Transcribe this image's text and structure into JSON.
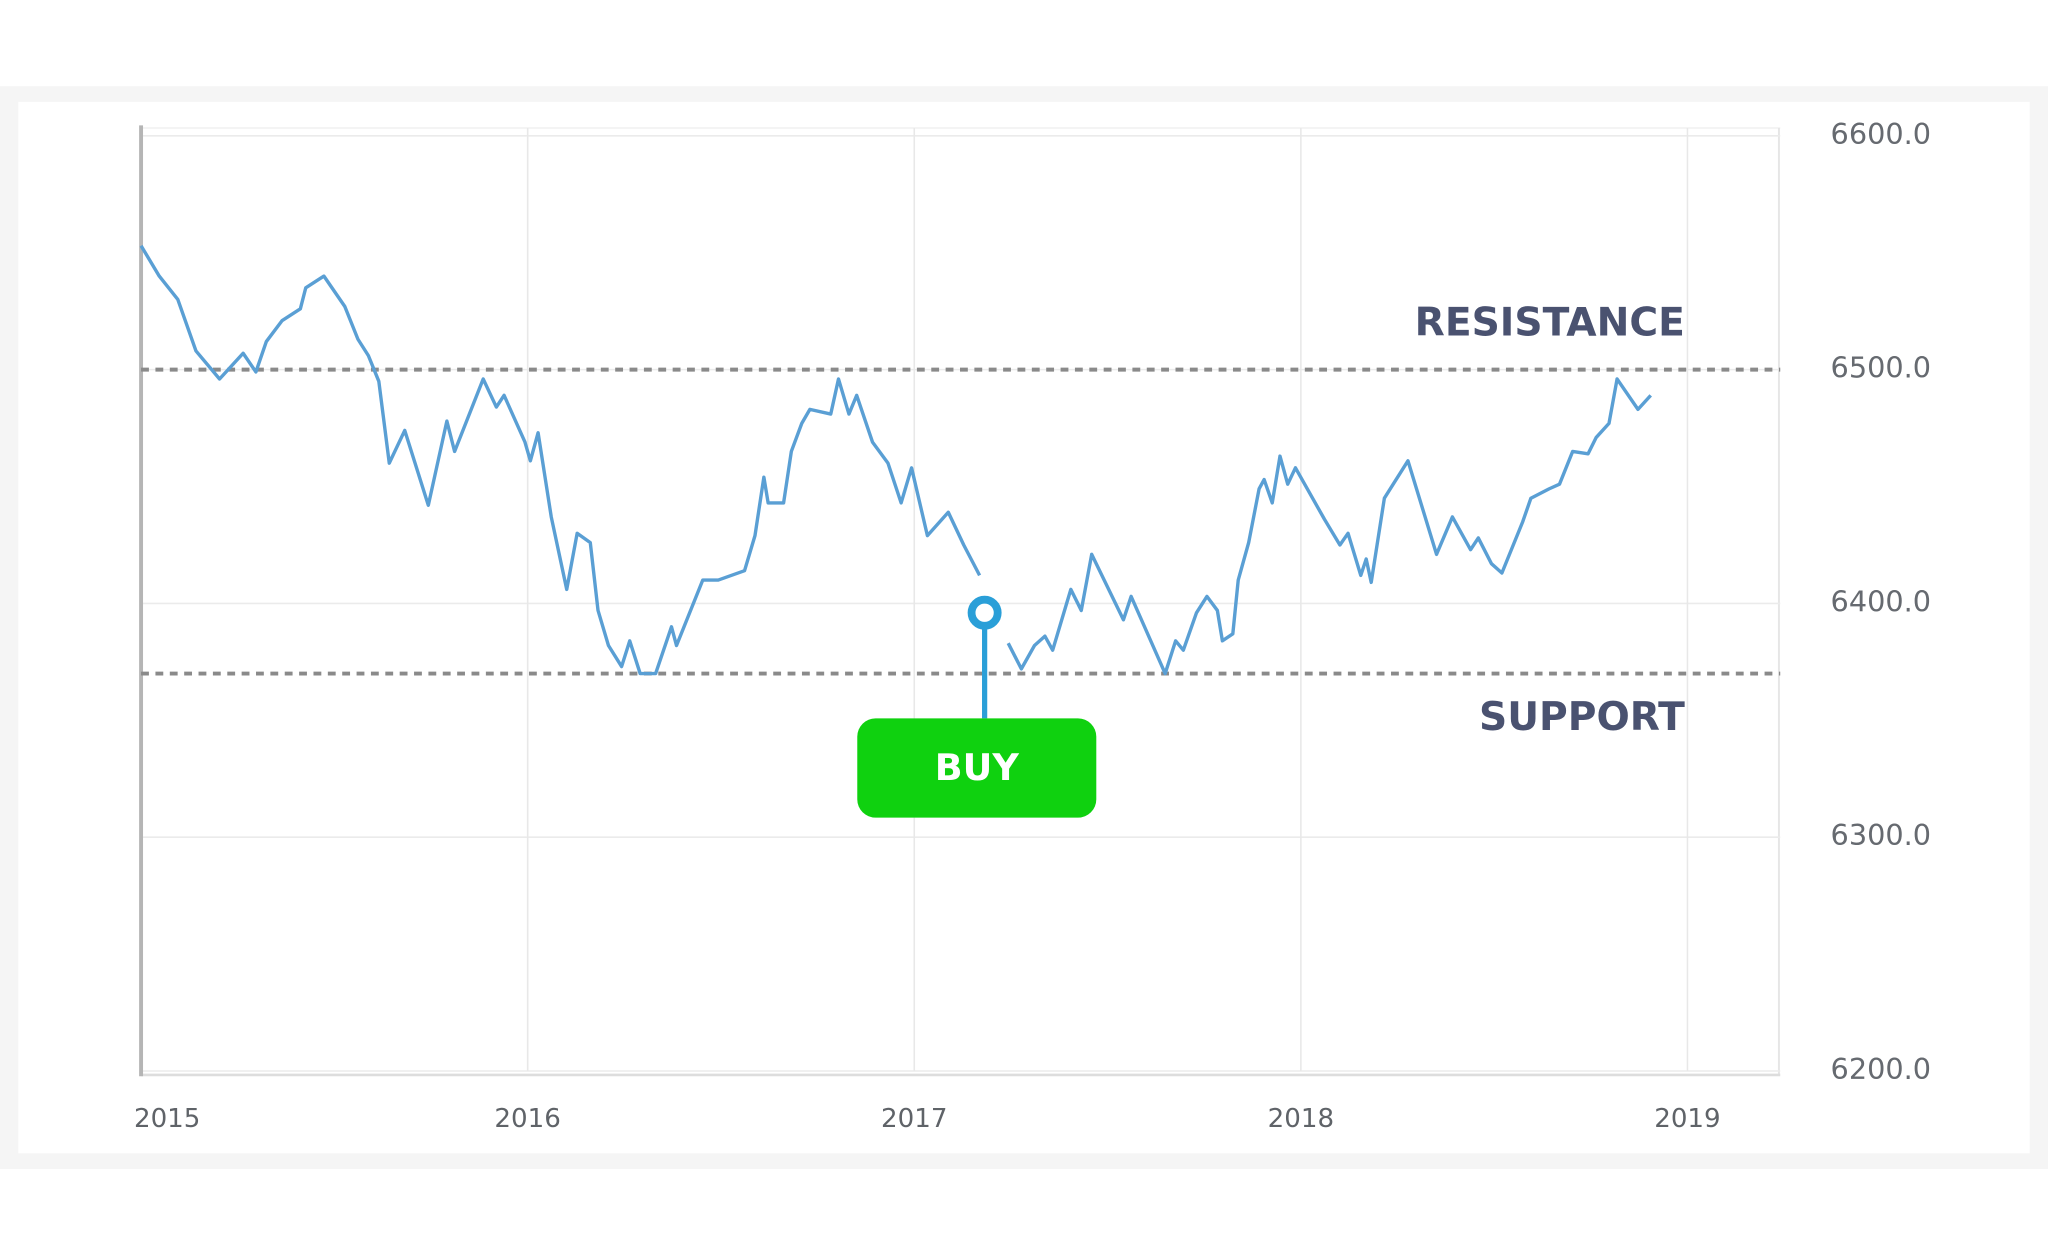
{
  "chart_data": {
    "type": "line",
    "color": "#5a9fd4",
    "x": [
      2015.0,
      2015.047,
      2015.095,
      2015.142,
      2015.203,
      2015.264,
      2015.297,
      2015.324,
      2015.365,
      2015.412,
      2015.426,
      2015.473,
      2015.527,
      2015.561,
      2015.588,
      2015.615,
      2015.642,
      2015.682,
      2015.743,
      2015.791,
      2015.811,
      2015.885,
      2015.919,
      2015.939,
      2015.993,
      2016.007,
      2016.027,
      2016.061,
      2016.101,
      2016.128,
      2016.162,
      2016.182,
      2016.209,
      2016.243,
      2016.264,
      2016.291,
      2016.331,
      2016.372,
      2016.385,
      2016.453,
      2016.493,
      2016.561,
      2016.588,
      2016.611,
      2016.622,
      2016.662,
      2016.682,
      2016.709,
      2016.73,
      2016.784,
      2016.804,
      2016.831,
      2016.851,
      2016.892,
      2016.932,
      2016.966,
      2016.993,
      2017.034,
      2017.088,
      2017.128,
      2017.169,
      null,
      2017.243,
      2017.277,
      2017.311,
      2017.338,
      2017.358,
      2017.405,
      2017.432,
      2017.459,
      2017.541,
      2017.561,
      2017.649,
      2017.676,
      2017.696,
      2017.73,
      2017.757,
      2017.784,
      2017.797,
      2017.824,
      2017.838,
      2017.865,
      2017.892,
      2017.905,
      2017.926,
      2017.946,
      2017.966,
      2017.986,
      2018.061,
      2018.101,
      2018.122,
      2018.155,
      2018.169,
      2018.182,
      2018.216,
      2018.277,
      2018.351,
      2018.392,
      2018.439,
      2018.459,
      2018.493,
      2018.52,
      2018.574,
      2018.595,
      2018.642,
      2018.669,
      2018.703,
      2018.743,
      2018.764,
      2018.797,
      2018.818,
      2018.872,
      2018.905
    ],
    "values": [
      6553,
      6540,
      6530,
      6508,
      6496,
      6507,
      6499,
      6512,
      6521,
      6526,
      6535,
      6540,
      6527,
      6513,
      6506,
      6495,
      6460,
      6474,
      6442,
      6478,
      6465,
      6496,
      6484,
      6489,
      6469,
      6461,
      6473,
      6437,
      6406,
      6430,
      6426,
      6397,
      6382,
      6373,
      6384,
      6370,
      6370,
      6390,
      6382,
      6410,
      6410,
      6414,
      6429,
      6454,
      6443,
      6443,
      6465,
      6477,
      6483,
      6481,
      6496,
      6481,
      6489,
      6469,
      6460,
      6443,
      6458,
      6429,
      6439,
      6425,
      6412,
      null,
      6383,
      6372,
      6382,
      6386,
      6380,
      6406,
      6397,
      6421,
      6393,
      6403,
      6370,
      6384,
      6380,
      6396,
      6403,
      6397,
      6384,
      6387,
      6410,
      6426,
      6449,
      6453,
      6443,
      6463,
      6451,
      6458,
      6436,
      6425,
      6430,
      6412,
      6419,
      6409,
      6445,
      6461,
      6421,
      6437,
      6423,
      6428,
      6417,
      6413,
      6435,
      6445,
      6449,
      6451,
      6465,
      6464,
      6471,
      6477,
      6496,
      6483,
      6489
    ],
    "xlim": [
      2015,
      2019.24
    ],
    "xticks": [
      2015,
      2016,
      2017,
      2018,
      2019
    ],
    "ylim": [
      6200,
      6600
    ],
    "yticks": [
      {
        "value": 6200,
        "label": "6200.0"
      },
      {
        "value": 6300,
        "label": "6300.0"
      },
      {
        "value": 6400,
        "label": "6400.0"
      },
      {
        "value": 6500,
        "label": "6500.0"
      },
      {
        "value": 6600,
        "label": "6600.0"
      }
    ],
    "grid": true,
    "levels": [
      {
        "name": "RESISTANCE",
        "value": 6500
      },
      {
        "name": "SUPPORT",
        "value": 6370
      }
    ],
    "buy": {
      "label": "BUY",
      "x": 2017.182,
      "y": 6396
    }
  }
}
